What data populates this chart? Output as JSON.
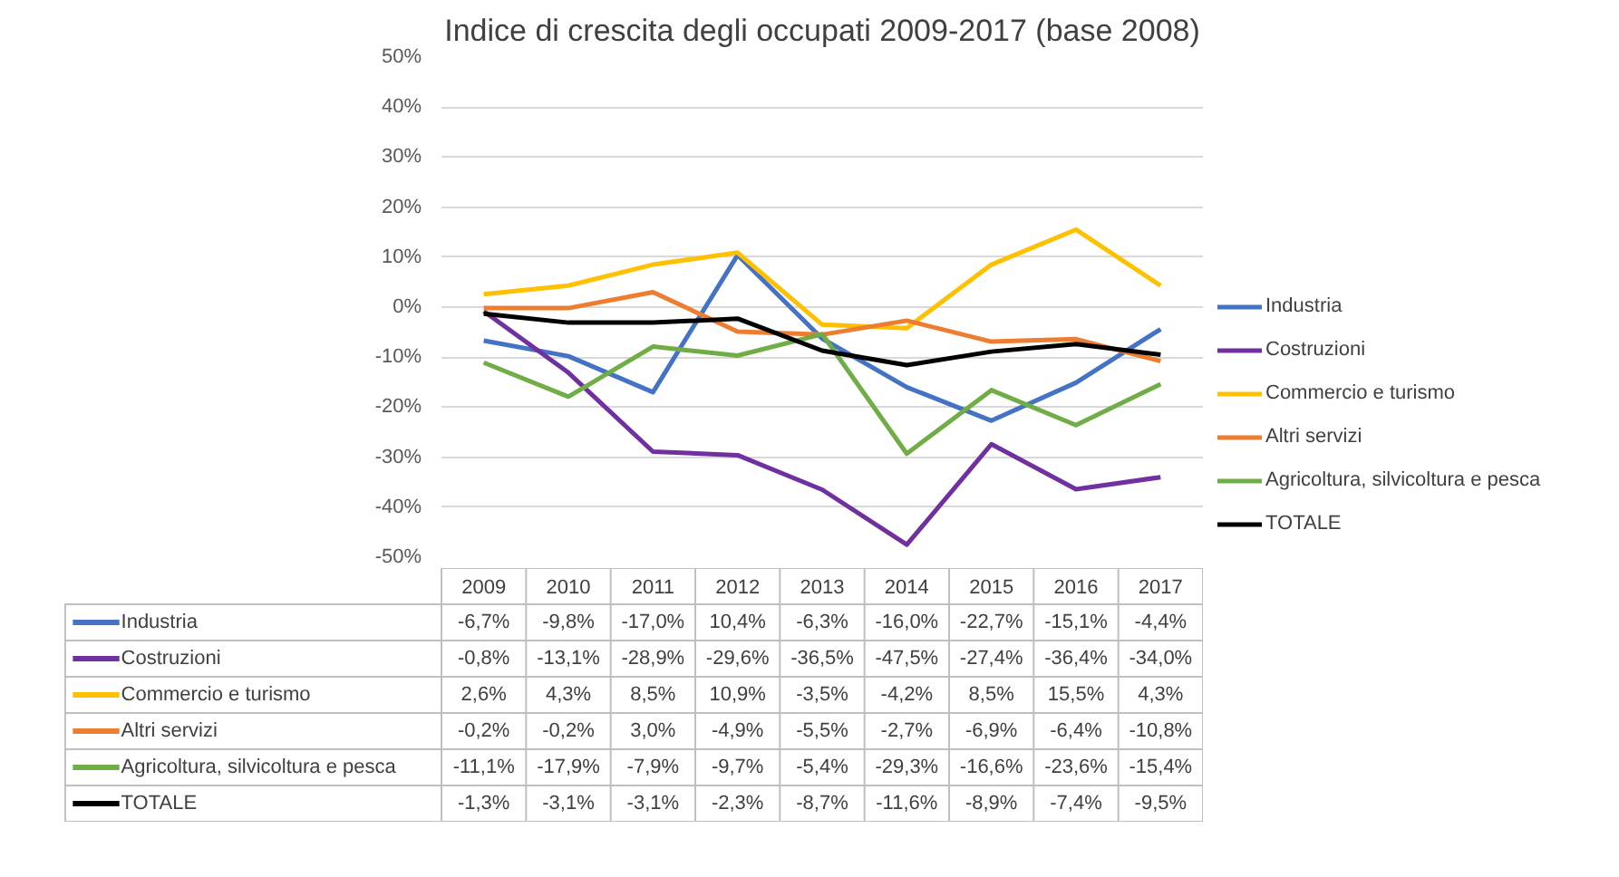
{
  "chart_data": {
    "type": "line",
    "title": "Indice di crescita degli occupati 2009-2017 (base 2008)",
    "categories": [
      "2009",
      "2010",
      "2011",
      "2012",
      "2013",
      "2014",
      "2015",
      "2016",
      "2017"
    ],
    "ylim": [
      -50,
      50
    ],
    "yticks": [
      {
        "value": -50,
        "label": "-50%"
      },
      {
        "value": -40,
        "label": "-40%"
      },
      {
        "value": -30,
        "label": "-30%"
      },
      {
        "value": -20,
        "label": "-20%"
      },
      {
        "value": -10,
        "label": "-10%"
      },
      {
        "value": 0,
        "label": "0%"
      },
      {
        "value": 10,
        "label": "10%"
      },
      {
        "value": 20,
        "label": "20%"
      },
      {
        "value": 30,
        "label": "30%"
      },
      {
        "value": 40,
        "label": "40%"
      },
      {
        "value": 50,
        "label": "50%"
      }
    ],
    "grid": "y",
    "legend": "right",
    "marker": "none",
    "line_style": "solid",
    "series": [
      {
        "name": "Industria",
        "color": "#4472c4",
        "values": [
          -6.7,
          -9.8,
          -17.0,
          10.4,
          -6.3,
          -16.0,
          -22.7,
          -15.1,
          -4.4
        ],
        "value_labels": [
          "-6,7%",
          "-9,8%",
          "-17,0%",
          "10,4%",
          "-6,3%",
          "-16,0%",
          "-22,7%",
          "-15,1%",
          "-4,4%"
        ]
      },
      {
        "name": "Costruzioni",
        "color": "#7030a0",
        "values": [
          -0.8,
          -13.1,
          -28.9,
          -29.6,
          -36.5,
          -47.5,
          -27.4,
          -36.4,
          -34.0
        ],
        "value_labels": [
          "-0,8%",
          "-13,1%",
          "-28,9%",
          "-29,6%",
          "-36,5%",
          "-47,5%",
          "-27,4%",
          "-36,4%",
          "-34,0%"
        ]
      },
      {
        "name": "Commercio e turismo",
        "color": "#ffc000",
        "values": [
          2.6,
          4.3,
          8.5,
          10.9,
          -3.5,
          -4.2,
          8.5,
          15.5,
          4.3
        ],
        "value_labels": [
          "2,6%",
          "4,3%",
          "8,5%",
          "10,9%",
          "-3,5%",
          "-4,2%",
          "8,5%",
          "15,5%",
          "4,3%"
        ]
      },
      {
        "name": "Altri servizi",
        "color": "#ed7d31",
        "values": [
          -0.2,
          -0.2,
          3.0,
          -4.9,
          -5.5,
          -2.7,
          -6.9,
          -6.4,
          -10.8
        ],
        "value_labels": [
          "-0,2%",
          "-0,2%",
          "3,0%",
          "-4,9%",
          "-5,5%",
          "-2,7%",
          "-6,9%",
          "-6,4%",
          "-10,8%"
        ]
      },
      {
        "name": "Agricoltura, silvicoltura e pesca",
        "color": "#70ad47",
        "values": [
          -11.1,
          -17.9,
          -7.9,
          -9.7,
          -5.4,
          -29.3,
          -16.6,
          -23.6,
          -15.4
        ],
        "value_labels": [
          "-11,1%",
          "-17,9%",
          "-7,9%",
          "-9,7%",
          "-5,4%",
          "-29,3%",
          "-16,6%",
          "-23,6%",
          "-15,4%"
        ]
      },
      {
        "name": "TOTALE",
        "color": "#000000",
        "values": [
          -1.3,
          -3.1,
          -3.1,
          -2.3,
          -8.7,
          -11.6,
          -8.9,
          -7.4,
          -9.5
        ],
        "value_labels": [
          "-1,3%",
          "-3,1%",
          "-3,1%",
          "-2,3%",
          "-8,7%",
          "-11,6%",
          "-8,9%",
          "-7,4%",
          "-9,5%"
        ]
      }
    ]
  }
}
